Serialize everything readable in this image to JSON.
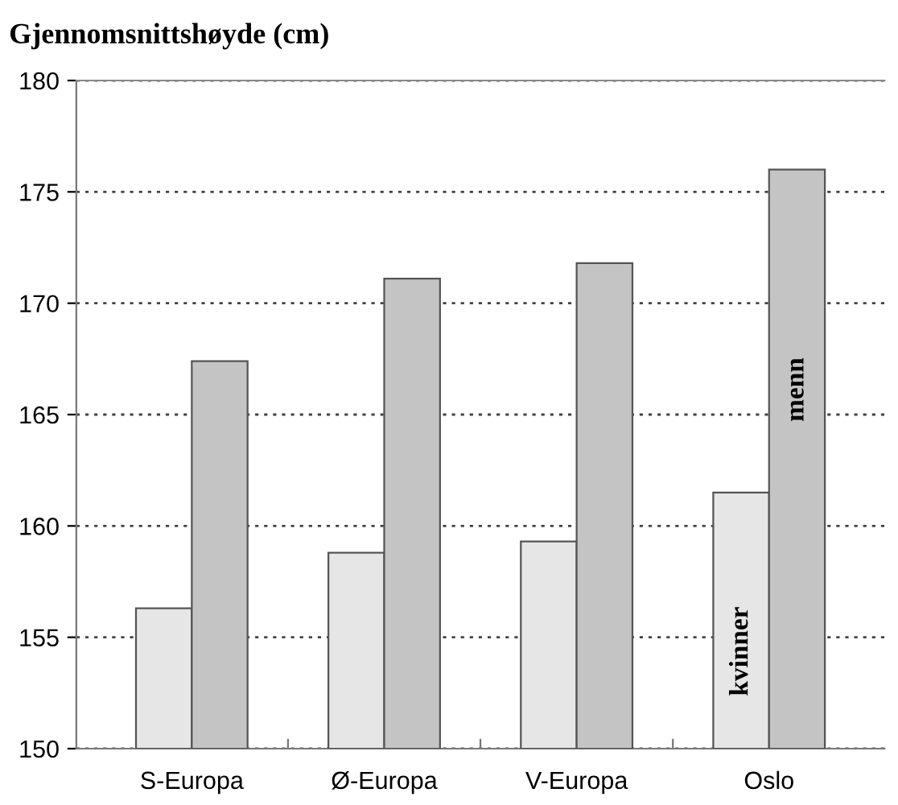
{
  "chart_data": {
    "type": "bar",
    "title": "Gjennomsnittshøyde (cm)",
    "categories": [
      "S-Europa",
      "Ø-Europa",
      "V-Europa",
      "Oslo"
    ],
    "series": [
      {
        "name": "kvinner",
        "color": "#e6e6e6",
        "values": [
          156.3,
          158.8,
          159.3,
          161.5
        ]
      },
      {
        "name": "menn",
        "color": "#c4c4c4",
        "values": [
          167.4,
          171.1,
          171.8,
          176.0
        ]
      }
    ],
    "ylim": [
      150,
      180
    ],
    "yticks": [
      150,
      155,
      160,
      165,
      170,
      175,
      180
    ],
    "grid": "y",
    "legend": false
  }
}
